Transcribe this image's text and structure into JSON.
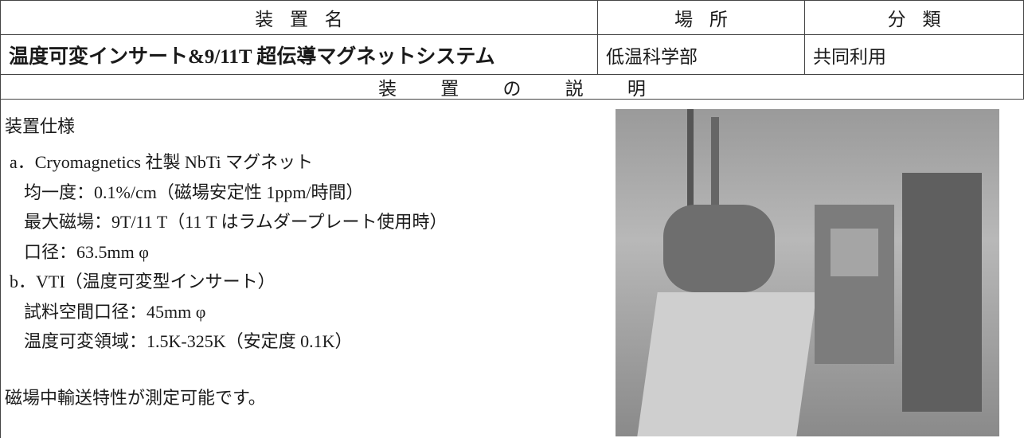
{
  "table": {
    "headers": [
      "装置名",
      "場所",
      "分類"
    ],
    "row": [
      "温度可変インサート&9/11T 超伝導マグネットシステム",
      "低温科学部",
      "共同利用"
    ],
    "section_title": "装置の説明"
  },
  "description": {
    "heading": "装置仕様",
    "items": [
      "a．Cryomagnetics 社製 NbTi マグネット",
      "均一度：0.1%/cm（磁場安定性 1ppm/時間）",
      "最大磁場：9T/11 T（11 T はラムダープレート使用時）",
      "口径：63.5mm φ",
      "b．VTI（温度可変型インサート）",
      "試料空間口径：45mm φ",
      "温度可変領域：1.5K-325K（安定度 0.1K）"
    ],
    "note": "磁場中輸送特性が測定可能です。"
  }
}
